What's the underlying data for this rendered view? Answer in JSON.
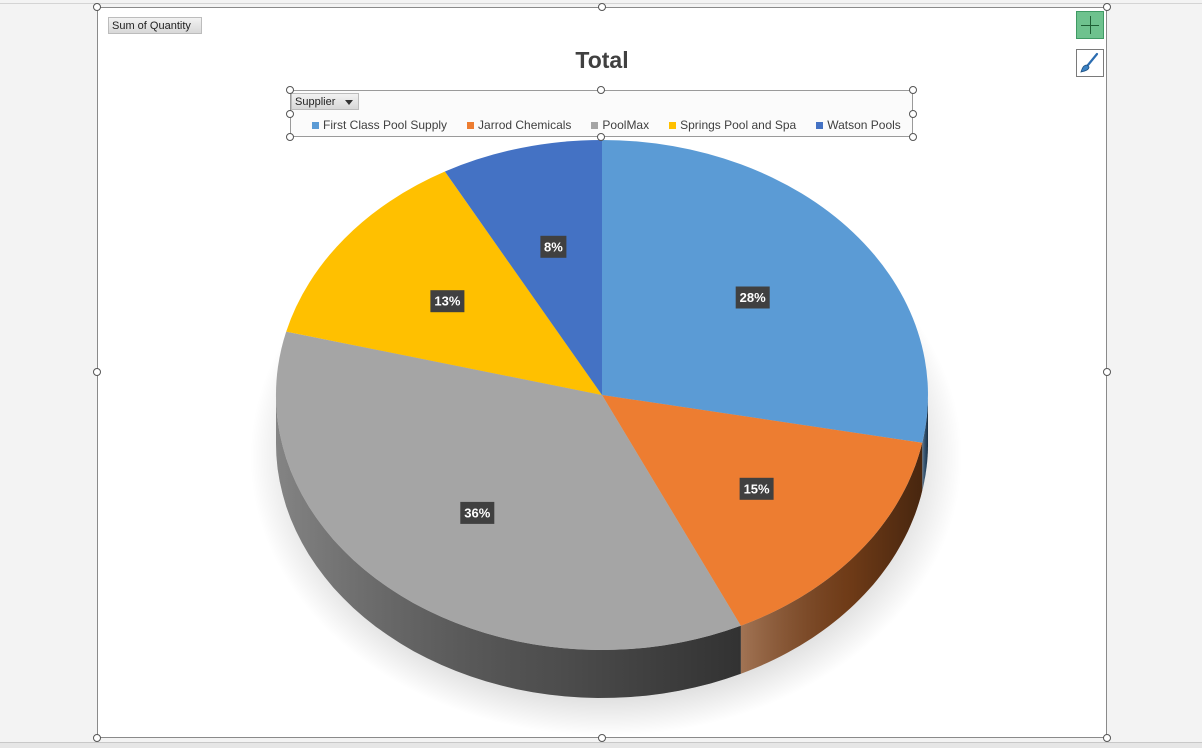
{
  "pivot": {
    "value_field": "Sum of Quantity",
    "legend_field": "Supplier"
  },
  "chart_data": {
    "type": "pie",
    "title": "Total",
    "three_d": true,
    "legend_position": "top",
    "categories": [
      "First Class Pool Supply",
      "Jarrod Chemicals",
      "PoolMax",
      "Springs Pool and Spa",
      "Watson Pools"
    ],
    "values": [
      28,
      15,
      36,
      13,
      8
    ],
    "data_labels": [
      "28%",
      "15%",
      "36%",
      "13%",
      "8%"
    ],
    "colors": [
      "#5B9BD5",
      "#ED7D31",
      "#A5A5A5",
      "#FFC000",
      "#4472C4"
    ]
  },
  "icons": {
    "add_element": "plus-icon",
    "styles": "paintbrush-icon"
  }
}
